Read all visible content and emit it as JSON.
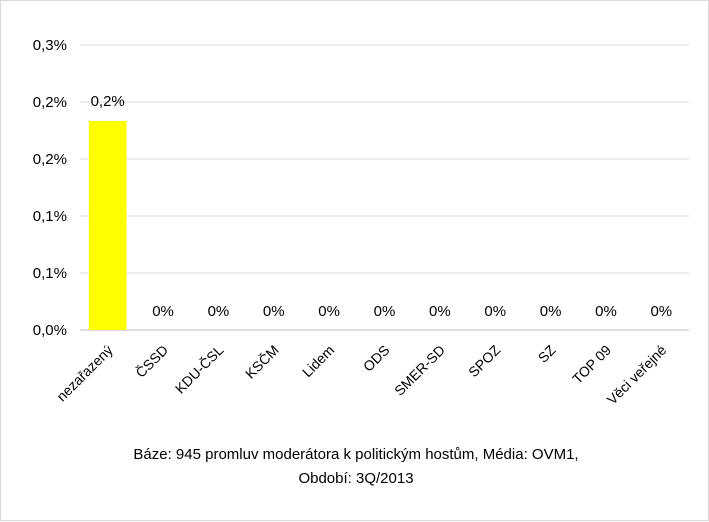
{
  "chart_data": {
    "type": "bar",
    "categories": [
      "nezařazený",
      "ČSSD",
      "KDU-ČSL",
      "KSČM",
      "Lidem",
      "ODS",
      "SMER-SD",
      "SPOZ",
      "SZ",
      "TOP 09",
      "Věci veřejné"
    ],
    "values": [
      0.22,
      0,
      0,
      0,
      0,
      0,
      0,
      0,
      0,
      0,
      0
    ],
    "data_labels": [
      "0,2%",
      "0%",
      "0%",
      "0%",
      "0%",
      "0%",
      "0%",
      "0%",
      "0%",
      "0%",
      "0%"
    ],
    "y_tick_labels": [
      "0,0%",
      "0,1%",
      "0,1%",
      "0,2%",
      "0,2%",
      "0,3%"
    ],
    "ylim": [
      0,
      0.3
    ],
    "grid": true,
    "bar_color": "#ffff00",
    "gridline_color": "#d9d9d9",
    "caption_line1": "Báze: 945 promluv moderátora k politickým hostům, Média: OVM1,",
    "caption_line2": "Období: 3Q/2013"
  }
}
